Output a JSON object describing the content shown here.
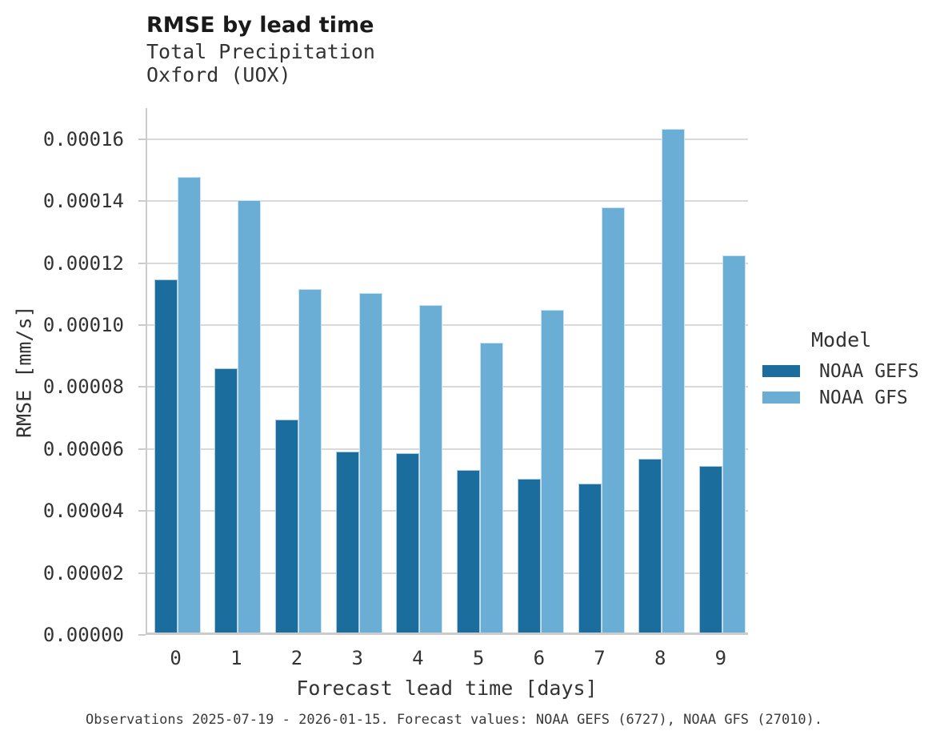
{
  "header": {
    "title": "RMSE by lead time",
    "subtitle_line1": "Total Precipitation",
    "subtitle_line2": "Oxford (UOX)"
  },
  "chart_data": {
    "type": "bar",
    "title": "RMSE by lead time",
    "subtitle": [
      "Total Precipitation",
      "Oxford (UOX)"
    ],
    "xlabel": "Forecast lead time [days]",
    "ylabel": "RMSE [mm/s]",
    "categories": [
      "0",
      "1",
      "2",
      "3",
      "4",
      "5",
      "6",
      "7",
      "8",
      "9"
    ],
    "series": [
      {
        "name": "NOAA GEFS",
        "color": "#1b6d9e",
        "values": [
          0.000114,
          8.53e-05,
          6.88e-05,
          5.84e-05,
          5.78e-05,
          5.25e-05,
          4.96e-05,
          4.8e-05,
          5.61e-05,
          5.37e-05
        ]
      },
      {
        "name": "NOAA GFS",
        "color": "#6aaed6",
        "values": [
          0.000147,
          0.0001394,
          0.0001108,
          0.0001096,
          0.0001056,
          9.35e-05,
          0.000104,
          0.0001372,
          0.0001625,
          0.0001217
        ]
      }
    ],
    "ylim": [
      0,
      0.00017
    ],
    "yticks": [
      0.0,
      2e-05,
      4e-05,
      6e-05,
      8e-05,
      0.0001,
      0.00012,
      0.00014,
      0.00016
    ],
    "ytick_labels": [
      "0.00000",
      "0.00002",
      "0.00004",
      "0.00006",
      "0.00008",
      "0.00010",
      "0.00012",
      "0.00014",
      "0.00016"
    ],
    "grid": "horizontal",
    "legend_position": "right"
  },
  "legend": {
    "title": "Model",
    "entries": [
      {
        "label": "NOAA GEFS",
        "color": "#1b6d9e"
      },
      {
        "label": "NOAA GFS",
        "color": "#6aaed6"
      }
    ]
  },
  "footer": {
    "caption": "Observations 2025-07-19 - 2026-01-15. Forecast values: NOAA GEFS (6727), NOAA GFS (27010)."
  },
  "colors": {
    "gefs_bar": "#1b6d9e",
    "gfs_bar": "#6aaed6",
    "gridline": "#d9d9d9",
    "axis_spine": "#cbcbcb",
    "title_text": "#1a1a1a",
    "label_text": "#333333"
  }
}
